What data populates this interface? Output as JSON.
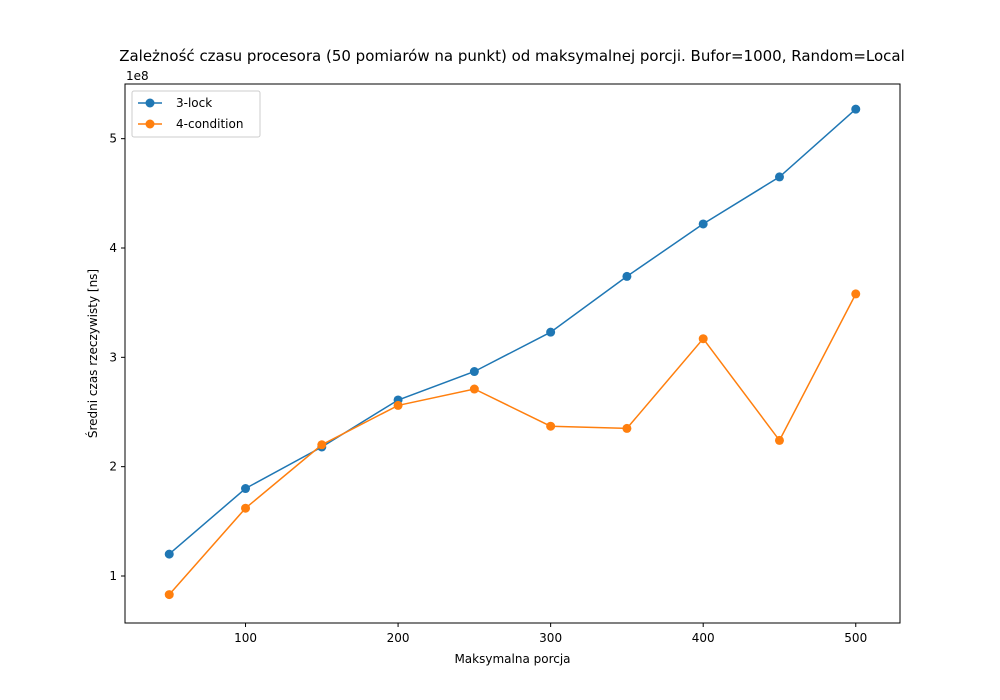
{
  "chart_data": {
    "type": "line",
    "title": "Zależność czasu procesora (50 pomiarów na punkt) od maksymalnej porcji. Bufor=1000, Random=Local",
    "xlabel": "Maksymalna porcja",
    "ylabel": "Średni czas rzeczywisty [ns]",
    "y_scale_label": "1e8",
    "x": [
      50,
      100,
      150,
      200,
      250,
      300,
      350,
      400,
      450,
      500
    ],
    "xlim": [
      21,
      529
    ],
    "ylim": [
      57000000,
      550000000
    ],
    "x_ticks": [
      100,
      200,
      300,
      400,
      500
    ],
    "y_ticks": [
      100000000,
      200000000,
      300000000,
      400000000,
      500000000
    ],
    "x_tick_labels": [
      "100",
      "200",
      "300",
      "400",
      "500"
    ],
    "y_tick_labels": [
      "1",
      "2",
      "3",
      "4",
      "5"
    ],
    "grid": false,
    "legend_position": "top-left",
    "series": [
      {
        "name": "3-lock",
        "color": "#1f77b4",
        "values": [
          120000000,
          180000000,
          218000000,
          261000000,
          287000000,
          323000000,
          374000000,
          422000000,
          465000000,
          527000000
        ]
      },
      {
        "name": "4-condition",
        "color": "#ff7f0e",
        "values": [
          83000000,
          162000000,
          220000000,
          256000000,
          271000000,
          237000000,
          235000000,
          317000000,
          224000000,
          358000000
        ]
      }
    ]
  }
}
